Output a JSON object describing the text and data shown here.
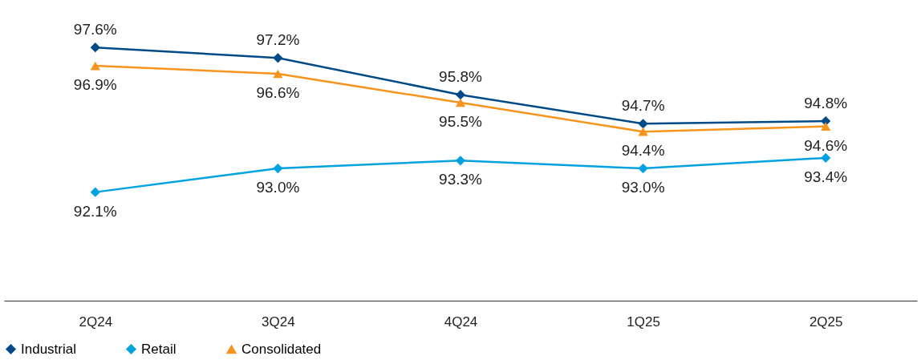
{
  "chart_data": {
    "type": "line",
    "categories": [
      "2Q24",
      "3Q24",
      "4Q24",
      "1Q25",
      "2Q25"
    ],
    "series": [
      {
        "name": "Industrial",
        "color": "#004b87",
        "marker": "diamond",
        "values": [
          97.6,
          97.2,
          95.8,
          94.7,
          94.8
        ],
        "value_labels": [
          "97.6%",
          "97.2%",
          "95.8%",
          "94.7%",
          "94.8%"
        ]
      },
      {
        "name": "Retail",
        "color": "#00a3e0",
        "marker": "diamond",
        "values": [
          92.1,
          93.0,
          93.3,
          93.0,
          93.4
        ],
        "value_labels": [
          "92.1%",
          "93.0%",
          "93.3%",
          "93.0%",
          "93.4%"
        ]
      },
      {
        "name": "Consolidated",
        "color": "#f7941d",
        "marker": "triangle",
        "values": [
          96.9,
          96.6,
          95.5,
          94.4,
          94.6
        ],
        "value_labels": [
          "96.9%",
          "96.6%",
          "95.5%",
          "94.4%",
          "94.6%"
        ]
      }
    ],
    "tick_labels": "x",
    "legend": "bottom"
  }
}
